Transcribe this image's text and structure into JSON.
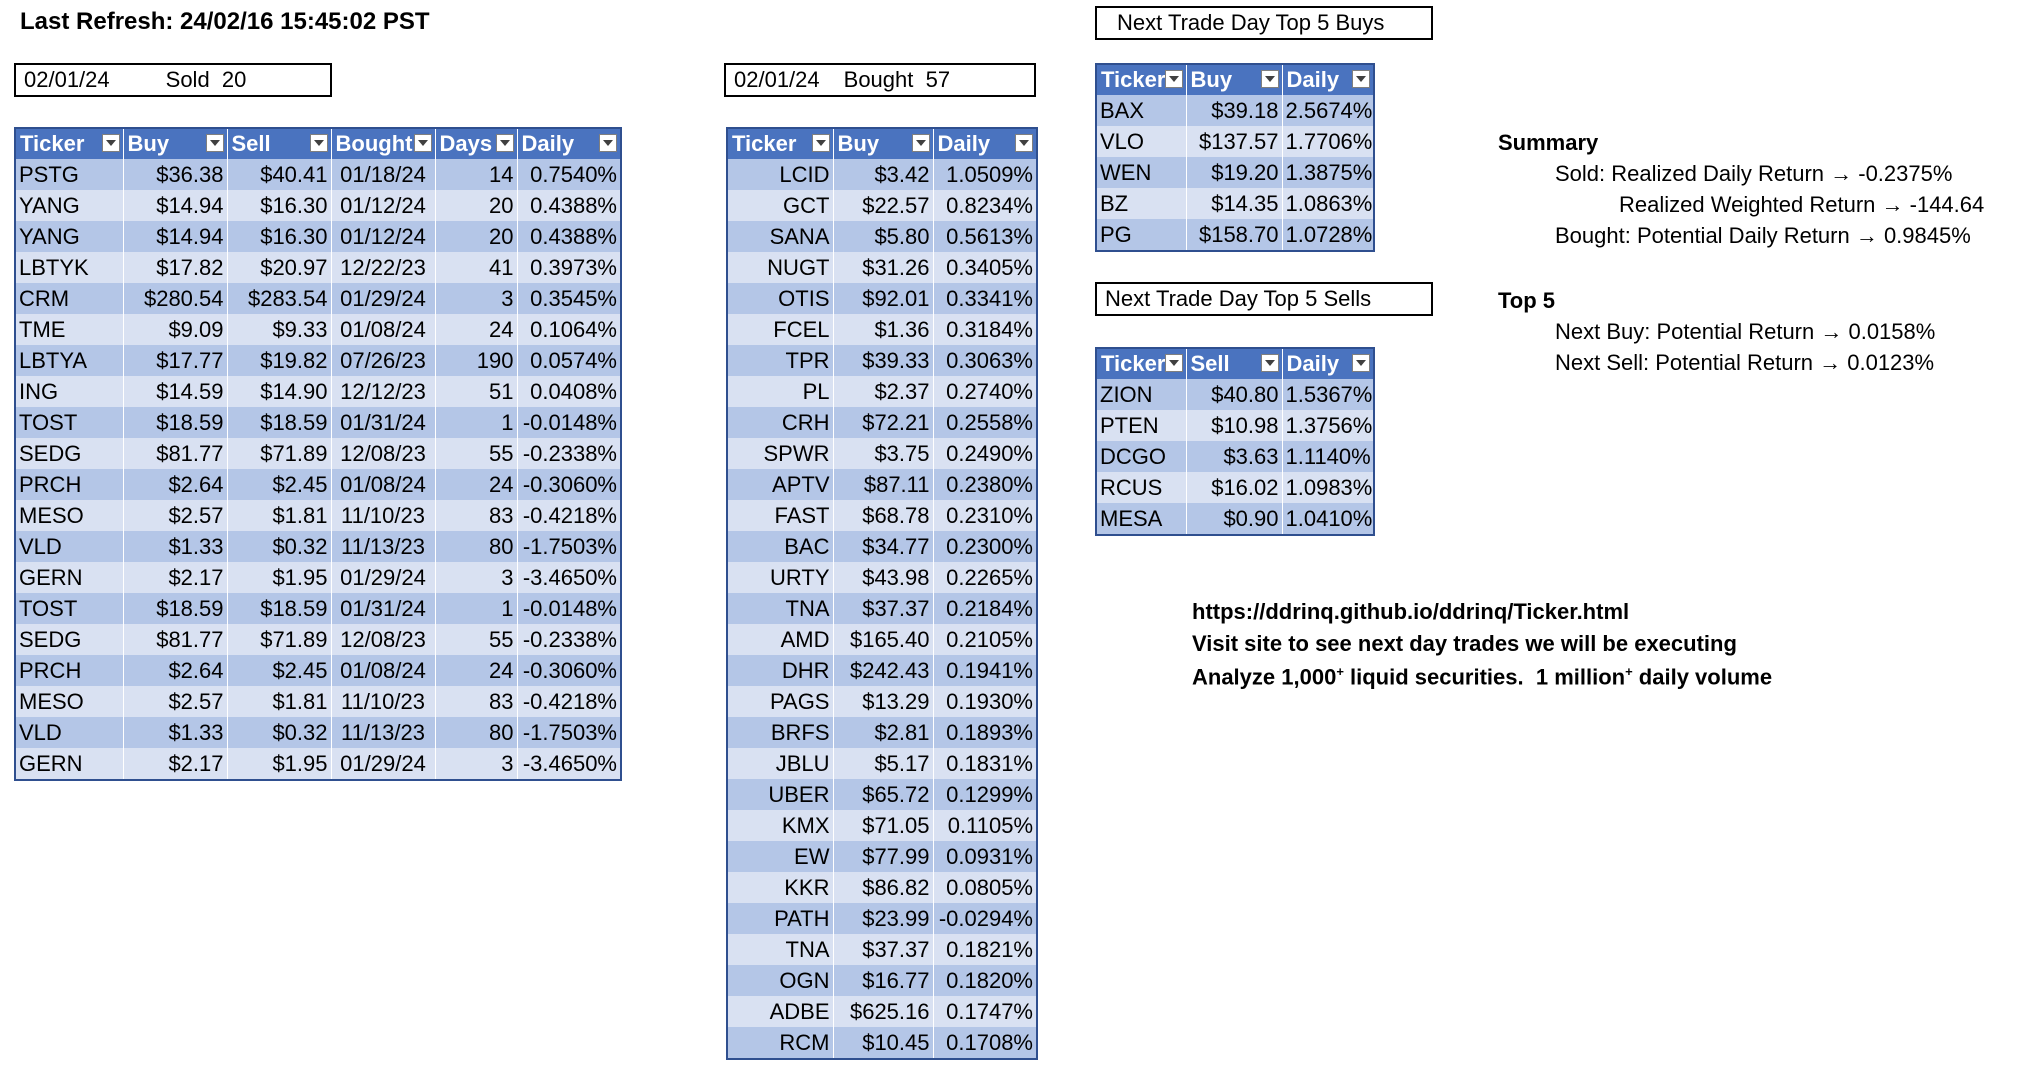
{
  "header": {
    "last_refresh": "Last Refresh: 24/02/16 15:45:02 PST"
  },
  "sold_box": {
    "date": "02/01/24",
    "label": "Sold  20"
  },
  "bought_box": {
    "date": "02/01/24",
    "label": "Bought  57"
  },
  "sold_table": {
    "columns": [
      "Ticker",
      "Buy",
      "Sell",
      "Bought",
      "Days",
      "Daily"
    ],
    "rows": [
      [
        "PSTG",
        "$36.38",
        "$40.41",
        "01/18/24",
        "14",
        "0.7540%"
      ],
      [
        "YANG",
        "$14.94",
        "$16.30",
        "01/12/24",
        "20",
        "0.4388%"
      ],
      [
        "YANG",
        "$14.94",
        "$16.30",
        "01/12/24",
        "20",
        "0.4388%"
      ],
      [
        "LBTYK",
        "$17.82",
        "$20.97",
        "12/22/23",
        "41",
        "0.3973%"
      ],
      [
        "CRM",
        "$280.54",
        "$283.54",
        "01/29/24",
        "3",
        "0.3545%"
      ],
      [
        "TME",
        "$9.09",
        "$9.33",
        "01/08/24",
        "24",
        "0.1064%"
      ],
      [
        "LBTYA",
        "$17.77",
        "$19.82",
        "07/26/23",
        "190",
        "0.0574%"
      ],
      [
        "ING",
        "$14.59",
        "$14.90",
        "12/12/23",
        "51",
        "0.0408%"
      ],
      [
        "TOST",
        "$18.59",
        "$18.59",
        "01/31/24",
        "1",
        "-0.0148%"
      ],
      [
        "SEDG",
        "$81.77",
        "$71.89",
        "12/08/23",
        "55",
        "-0.2338%"
      ],
      [
        "PRCH",
        "$2.64",
        "$2.45",
        "01/08/24",
        "24",
        "-0.3060%"
      ],
      [
        "MESO",
        "$2.57",
        "$1.81",
        "11/10/23",
        "83",
        "-0.4218%"
      ],
      [
        "VLD",
        "$1.33",
        "$0.32",
        "11/13/23",
        "80",
        "-1.7503%"
      ],
      [
        "GERN",
        "$2.17",
        "$1.95",
        "01/29/24",
        "3",
        "-3.4650%"
      ],
      [
        "TOST",
        "$18.59",
        "$18.59",
        "01/31/24",
        "1",
        "-0.0148%"
      ],
      [
        "SEDG",
        "$81.77",
        "$71.89",
        "12/08/23",
        "55",
        "-0.2338%"
      ],
      [
        "PRCH",
        "$2.64",
        "$2.45",
        "01/08/24",
        "24",
        "-0.3060%"
      ],
      [
        "MESO",
        "$2.57",
        "$1.81",
        "11/10/23",
        "83",
        "-0.4218%"
      ],
      [
        "VLD",
        "$1.33",
        "$0.32",
        "11/13/23",
        "80",
        "-1.7503%"
      ],
      [
        "GERN",
        "$2.17",
        "$1.95",
        "01/29/24",
        "3",
        "-3.4650%"
      ]
    ]
  },
  "bought_table": {
    "columns": [
      "Ticker",
      "Buy",
      "Daily"
    ],
    "rows": [
      [
        "LCID",
        "$3.42",
        "1.0509%"
      ],
      [
        "GCT",
        "$22.57",
        "0.8234%"
      ],
      [
        "SANA",
        "$5.80",
        "0.5613%"
      ],
      [
        "NUGT",
        "$31.26",
        "0.3405%"
      ],
      [
        "OTIS",
        "$92.01",
        "0.3341%"
      ],
      [
        "FCEL",
        "$1.36",
        "0.3184%"
      ],
      [
        "TPR",
        "$39.33",
        "0.3063%"
      ],
      [
        "PL",
        "$2.37",
        "0.2740%"
      ],
      [
        "CRH",
        "$72.21",
        "0.2558%"
      ],
      [
        "SPWR",
        "$3.75",
        "0.2490%"
      ],
      [
        "APTV",
        "$87.11",
        "0.2380%"
      ],
      [
        "FAST",
        "$68.78",
        "0.2310%"
      ],
      [
        "BAC",
        "$34.77",
        "0.2300%"
      ],
      [
        "URTY",
        "$43.98",
        "0.2265%"
      ],
      [
        "TNA",
        "$37.37",
        "0.2184%"
      ],
      [
        "AMD",
        "$165.40",
        "0.2105%"
      ],
      [
        "DHR",
        "$242.43",
        "0.1941%"
      ],
      [
        "PAGS",
        "$13.29",
        "0.1930%"
      ],
      [
        "BRFS",
        "$2.81",
        "0.1893%"
      ],
      [
        "JBLU",
        "$5.17",
        "0.1831%"
      ],
      [
        "UBER",
        "$65.72",
        "0.1299%"
      ],
      [
        "KMX",
        "$71.05",
        "0.1105%"
      ],
      [
        "EW",
        "$77.99",
        "0.0931%"
      ],
      [
        "KKR",
        "$86.82",
        "0.0805%"
      ],
      [
        "PATH",
        "$23.99",
        "-0.0294%"
      ],
      [
        "TNA",
        "$37.37",
        "0.1821%"
      ],
      [
        "OGN",
        "$16.77",
        "0.1820%"
      ],
      [
        "ADBE",
        "$625.16",
        "0.1747%"
      ],
      [
        "RCM",
        "$10.45",
        "0.1708%"
      ]
    ]
  },
  "top_buys": {
    "title": "Next Trade Day Top 5 Buys",
    "columns": [
      "Ticker",
      "Buy",
      "Daily"
    ],
    "rows": [
      [
        "BAX",
        "$39.18",
        "2.5674%"
      ],
      [
        "VLO",
        "$137.57",
        "1.7706%"
      ],
      [
        "WEN",
        "$19.20",
        "1.3875%"
      ],
      [
        "BZ",
        "$14.35",
        "1.0863%"
      ],
      [
        "PG",
        "$158.70",
        "1.0728%"
      ]
    ]
  },
  "top_sells": {
    "title": "Next Trade Day Top 5 Sells",
    "columns": [
      "Ticker",
      "Sell",
      "Daily"
    ],
    "rows": [
      [
        "ZION",
        "$40.80",
        "1.5367%"
      ],
      [
        "PTEN",
        "$10.98",
        "1.3756%"
      ],
      [
        "DCGO",
        "$3.63",
        "1.1140%"
      ],
      [
        "RCUS",
        "$16.02",
        "1.0983%"
      ],
      [
        "MESA",
        "$0.90",
        "1.0410%"
      ]
    ]
  },
  "summary": {
    "title": "Summary",
    "sold_line": "Sold: Realized Daily Return → -0.2375%",
    "weighted_line": "Realized Weighted Return → -144.64",
    "bought_line": "Bought: Potential Daily Return → 0.9845%"
  },
  "top5": {
    "title": "Top 5",
    "buy_line": "Next Buy: Potential Return → 0.0158%",
    "sell_line": "Next Sell: Potential Return → 0.0123%"
  },
  "promo": {
    "url": "https://ddrinq.github.io/ddrinq/Ticker.html",
    "line2": "Visit site to see next day trades we will be executing",
    "line3_a": "Analyze 1,000",
    "line3_sup1": "+",
    "line3_b": " liquid securities.  1 million",
    "line3_sup2": "+",
    "line3_c": " daily volume"
  }
}
